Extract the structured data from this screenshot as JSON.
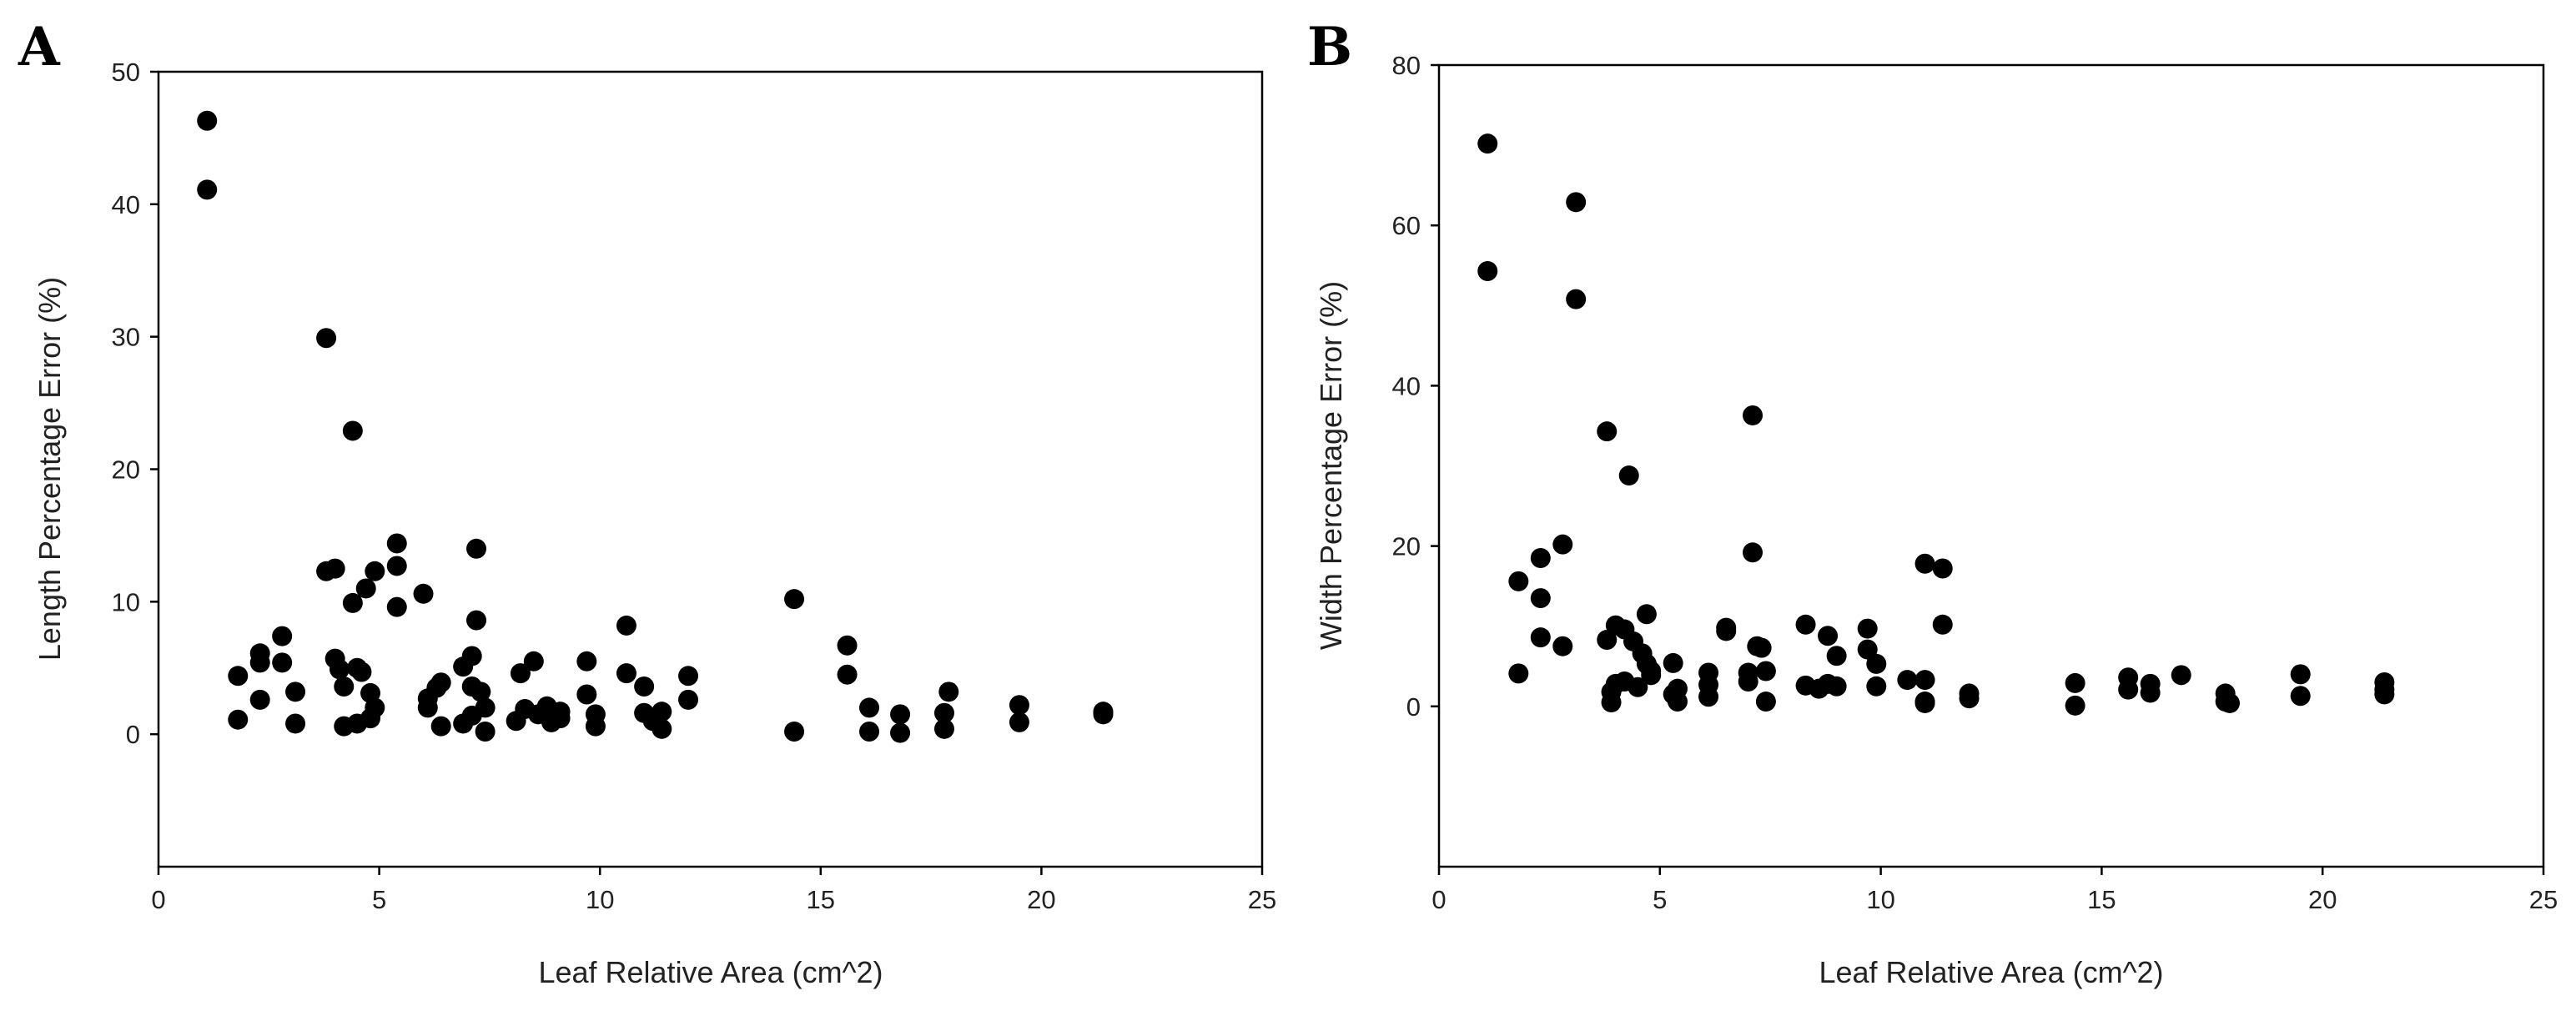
{
  "figure_labels": [
    "A",
    "B"
  ],
  "chart_data": [
    {
      "type": "scatter",
      "panel_label": "A",
      "title": "",
      "xlabel": "Leaf Relative Area (cm^2)",
      "ylabel": "Length Percentage Error (%)",
      "xlim": [
        0,
        25
      ],
      "ylim": [
        -10,
        50
      ],
      "xticks": [
        0,
        5,
        10,
        15,
        20,
        25
      ],
      "yticks": [
        0,
        10,
        20,
        30,
        40,
        50
      ],
      "grid": false,
      "marker_color": "#000000",
      "series": [
        {
          "name": "Length Percentage Error",
          "points": [
            [
              1.1,
              46.3
            ],
            [
              1.1,
              41.1
            ],
            [
              1.8,
              4.4
            ],
            [
              1.8,
              1.1
            ],
            [
              2.3,
              6.1
            ],
            [
              2.3,
              5.4
            ],
            [
              2.3,
              2.6
            ],
            [
              2.8,
              7.4
            ],
            [
              2.8,
              5.4
            ],
            [
              3.1,
              3.2
            ],
            [
              3.1,
              0.8
            ],
            [
              3.8,
              29.9
            ],
            [
              3.8,
              12.3
            ],
            [
              4.0,
              12.5
            ],
            [
              4.0,
              5.7
            ],
            [
              4.1,
              4.9
            ],
            [
              4.2,
              3.6
            ],
            [
              4.2,
              0.6
            ],
            [
              4.4,
              22.9
            ],
            [
              4.4,
              9.9
            ],
            [
              4.5,
              5.0
            ],
            [
              4.5,
              0.8
            ],
            [
              4.6,
              4.7
            ],
            [
              4.7,
              11.0
            ],
            [
              4.8,
              3.1
            ],
            [
              4.8,
              1.2
            ],
            [
              4.9,
              12.3
            ],
            [
              4.9,
              2.0
            ],
            [
              5.4,
              14.4
            ],
            [
              5.4,
              12.7
            ],
            [
              5.4,
              9.6
            ],
            [
              6.0,
              10.6
            ],
            [
              6.1,
              2.7
            ],
            [
              6.1,
              2.0
            ],
            [
              6.3,
              3.5
            ],
            [
              6.4,
              3.9
            ],
            [
              6.4,
              0.6
            ],
            [
              6.9,
              5.1
            ],
            [
              6.9,
              0.8
            ],
            [
              7.1,
              5.9
            ],
            [
              7.1,
              3.6
            ],
            [
              7.1,
              1.4
            ],
            [
              7.2,
              14.0
            ],
            [
              7.2,
              8.6
            ],
            [
              7.3,
              3.2
            ],
            [
              7.4,
              0.2
            ],
            [
              7.4,
              2.0
            ],
            [
              8.1,
              1.0
            ],
            [
              8.2,
              4.6
            ],
            [
              8.3,
              1.9
            ],
            [
              8.5,
              5.5
            ],
            [
              8.6,
              1.5
            ],
            [
              8.8,
              2.1
            ],
            [
              8.9,
              0.9
            ],
            [
              9.1,
              1.7
            ],
            [
              9.1,
              1.2
            ],
            [
              9.7,
              5.5
            ],
            [
              9.7,
              3.0
            ],
            [
              9.9,
              1.5
            ],
            [
              9.9,
              0.6
            ],
            [
              10.6,
              8.2
            ],
            [
              10.6,
              4.6
            ],
            [
              11.0,
              3.6
            ],
            [
              11.0,
              1.6
            ],
            [
              11.2,
              1.0
            ],
            [
              11.4,
              1.7
            ],
            [
              11.4,
              0.4
            ],
            [
              12.0,
              4.4
            ],
            [
              12.0,
              2.6
            ],
            [
              14.4,
              10.2
            ],
            [
              14.4,
              0.2
            ],
            [
              15.6,
              6.7
            ],
            [
              15.6,
              4.5
            ],
            [
              16.1,
              2.0
            ],
            [
              16.1,
              0.2
            ],
            [
              16.8,
              1.5
            ],
            [
              16.8,
              0.1
            ],
            [
              17.8,
              1.6
            ],
            [
              17.8,
              0.4
            ],
            [
              17.9,
              3.2
            ],
            [
              19.5,
              2.2
            ],
            [
              19.5,
              0.9
            ],
            [
              21.4,
              1.7
            ],
            [
              21.4,
              1.5
            ]
          ]
        }
      ]
    },
    {
      "type": "scatter",
      "panel_label": "B",
      "title": "",
      "xlabel": "Leaf Relative Area (cm^2)",
      "ylabel": "Width Percentage Error (%)",
      "xlim": [
        0,
        25
      ],
      "ylim": [
        -20,
        80
      ],
      "xticks": [
        0,
        5,
        10,
        15,
        20,
        25
      ],
      "yticks": [
        0,
        20,
        40,
        60,
        80
      ],
      "grid": false,
      "marker_color": "#000000",
      "series": [
        {
          "name": "Width Percentage Error",
          "points": [
            [
              1.1,
              70.2
            ],
            [
              1.1,
              54.3
            ],
            [
              1.8,
              15.6
            ],
            [
              1.8,
              4.1
            ],
            [
              2.3,
              18.5
            ],
            [
              2.3,
              13.5
            ],
            [
              2.3,
              8.6
            ],
            [
              2.8,
              20.2
            ],
            [
              2.8,
              7.5
            ],
            [
              3.1,
              62.9
            ],
            [
              3.1,
              50.8
            ],
            [
              3.8,
              34.3
            ],
            [
              3.8,
              8.3
            ],
            [
              3.9,
              1.8
            ],
            [
              3.9,
              0.5
            ],
            [
              4.0,
              10.1
            ],
            [
              4.0,
              2.8
            ],
            [
              4.2,
              9.6
            ],
            [
              4.2,
              3.1
            ],
            [
              4.3,
              28.8
            ],
            [
              4.4,
              8.1
            ],
            [
              4.5,
              2.4
            ],
            [
              4.6,
              6.6
            ],
            [
              4.7,
              11.5
            ],
            [
              4.7,
              5.3
            ],
            [
              4.8,
              4.4
            ],
            [
              4.8,
              3.9
            ],
            [
              5.3,
              5.4
            ],
            [
              5.3,
              1.5
            ],
            [
              5.4,
              2.2
            ],
            [
              5.4,
              0.6
            ],
            [
              6.1,
              4.2
            ],
            [
              6.1,
              2.7
            ],
            [
              6.1,
              1.2
            ],
            [
              6.5,
              9.8
            ],
            [
              6.5,
              9.4
            ],
            [
              7.0,
              4.2
            ],
            [
              7.0,
              3.1
            ],
            [
              7.1,
              36.3
            ],
            [
              7.1,
              19.2
            ],
            [
              7.2,
              7.5
            ],
            [
              7.3,
              7.3
            ],
            [
              7.4,
              4.4
            ],
            [
              7.4,
              0.6
            ],
            [
              8.3,
              10.2
            ],
            [
              8.3,
              2.6
            ],
            [
              8.6,
              2.2
            ],
            [
              8.8,
              8.8
            ],
            [
              8.8,
              2.8
            ],
            [
              9.0,
              6.3
            ],
            [
              9.0,
              2.5
            ],
            [
              9.7,
              9.7
            ],
            [
              9.7,
              7.1
            ],
            [
              9.9,
              5.3
            ],
            [
              9.9,
              2.5
            ],
            [
              10.6,
              3.3
            ],
            [
              11.0,
              17.8
            ],
            [
              11.0,
              3.3
            ],
            [
              11.0,
              0.6
            ],
            [
              11.0,
              0.4
            ],
            [
              11.4,
              17.2
            ],
            [
              11.4,
              10.2
            ],
            [
              12.0,
              1.6
            ],
            [
              12.0,
              1.0
            ],
            [
              14.4,
              2.9
            ],
            [
              14.4,
              0.1
            ],
            [
              15.6,
              3.6
            ],
            [
              15.6,
              2.1
            ],
            [
              16.1,
              2.8
            ],
            [
              16.1,
              1.7
            ],
            [
              16.8,
              3.9
            ],
            [
              17.8,
              1.6
            ],
            [
              17.8,
              0.6
            ],
            [
              17.9,
              0.4
            ],
            [
              19.5,
              4.0
            ],
            [
              19.5,
              1.3
            ],
            [
              21.4,
              3.0
            ],
            [
              21.4,
              2.1
            ],
            [
              21.4,
              1.5
            ]
          ]
        }
      ]
    }
  ]
}
